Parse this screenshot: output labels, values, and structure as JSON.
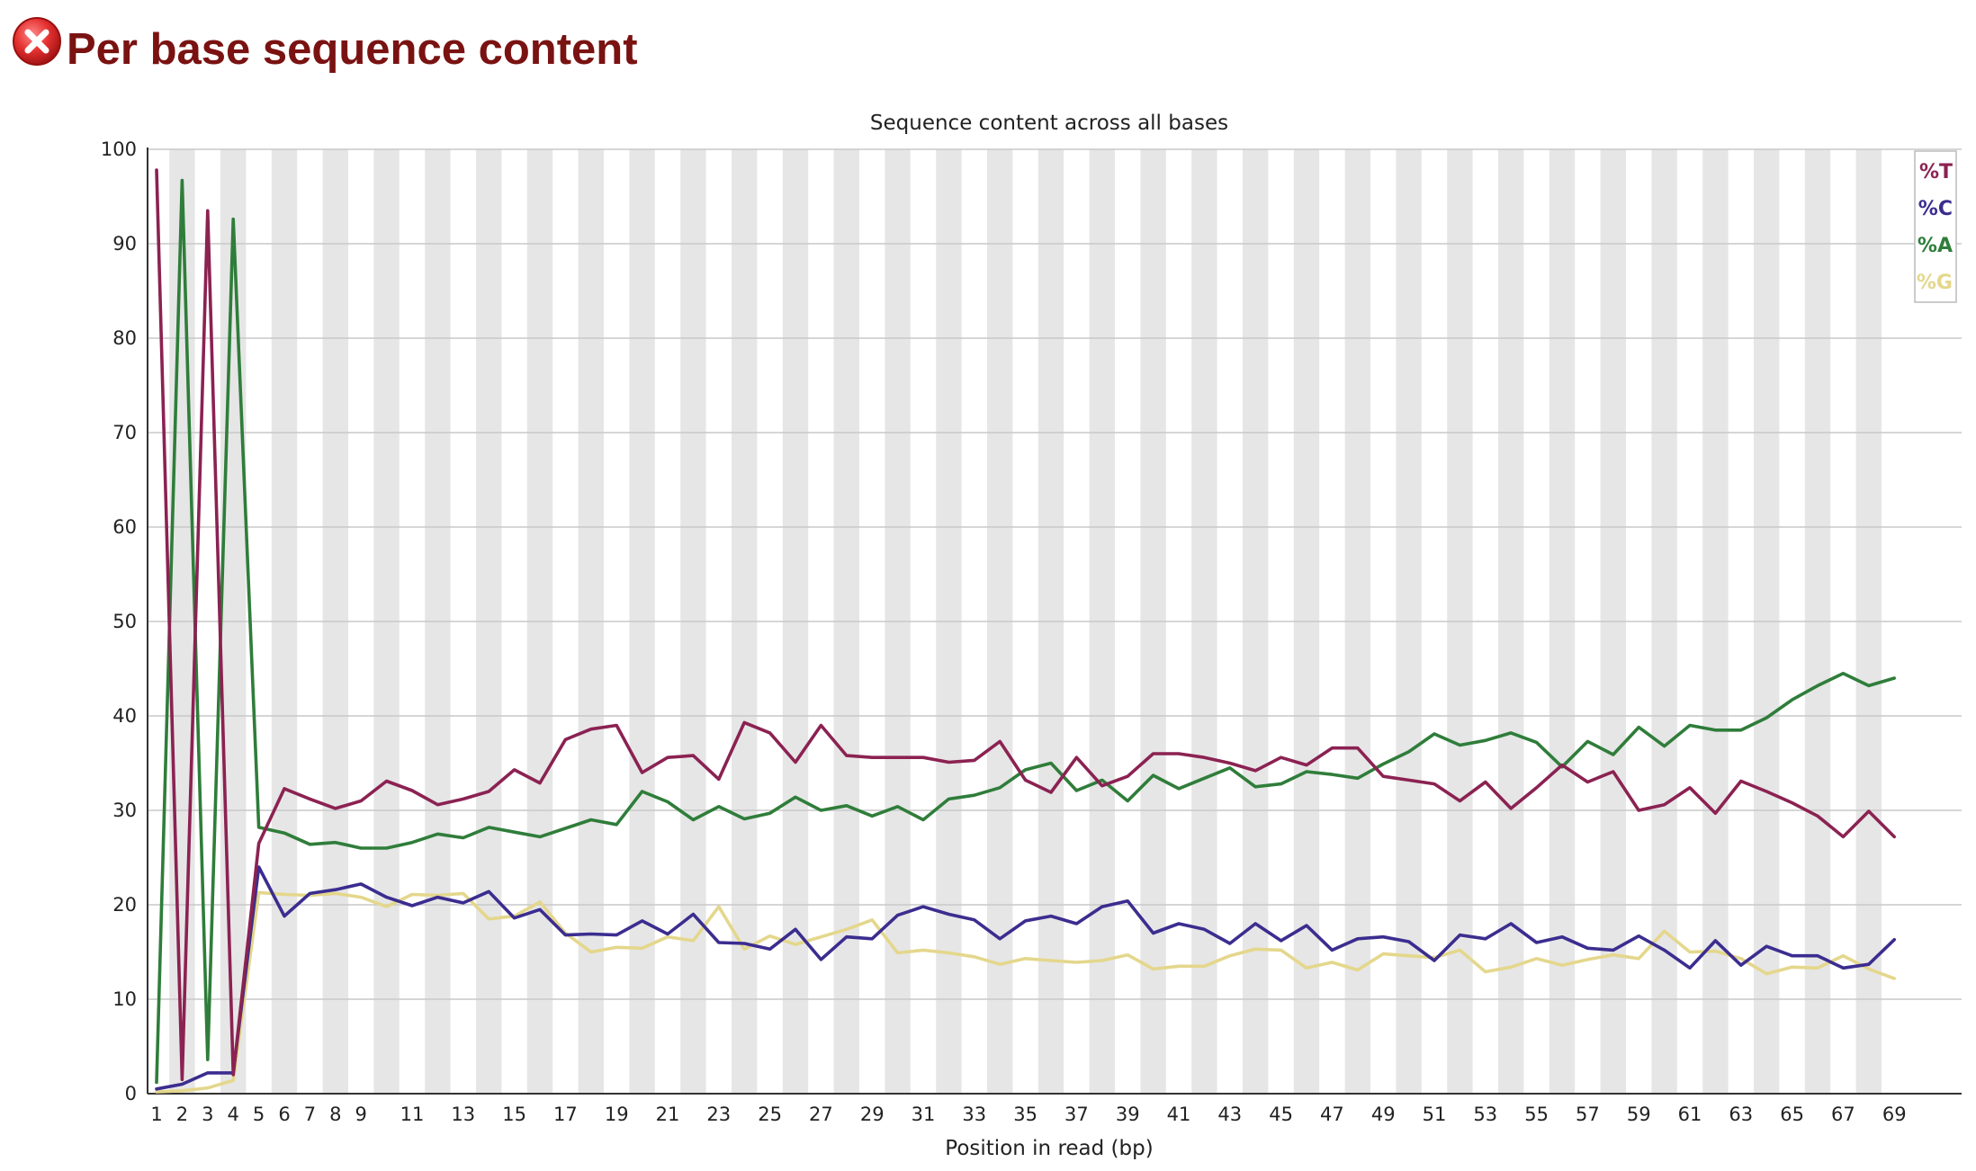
{
  "header": {
    "title": "Per base sequence content",
    "status_icon": "fail-x-icon",
    "status_color": "#d42a2a"
  },
  "chart_data": {
    "type": "line",
    "title": "Sequence content across all bases",
    "xlabel": "Position in read (bp)",
    "ylabel": "",
    "ylim": [
      0,
      100
    ],
    "yticks": [
      0,
      10,
      20,
      30,
      40,
      50,
      60,
      70,
      80,
      90,
      100
    ],
    "xtick_labels": [
      "1",
      "2",
      "3",
      "4",
      "5",
      "6",
      "7",
      "8",
      "9",
      "11",
      "13",
      "15",
      "17",
      "19",
      "21",
      "23",
      "25",
      "27",
      "29",
      "31",
      "33",
      "35",
      "37",
      "39",
      "41",
      "43",
      "45",
      "47",
      "49",
      "51",
      "53",
      "55",
      "57",
      "59",
      "61",
      "63",
      "65",
      "67",
      "69"
    ],
    "x": [
      1,
      2,
      3,
      4,
      5,
      6,
      7,
      8,
      9,
      10,
      11,
      12,
      13,
      14,
      15,
      16,
      17,
      18,
      19,
      20,
      21,
      22,
      23,
      24,
      25,
      26,
      27,
      28,
      29,
      30,
      31,
      32,
      33,
      34,
      35,
      36,
      37,
      38,
      39,
      40,
      41,
      42,
      43,
      44,
      45,
      46,
      47,
      48,
      49,
      50,
      51,
      52,
      53,
      54,
      55,
      56,
      57,
      58,
      59,
      60,
      61,
      62,
      63,
      64,
      65,
      66,
      67,
      68,
      69
    ],
    "grid": true,
    "legend_position": "top-right",
    "series": [
      {
        "name": "%T",
        "color": "#8b2252",
        "values": [
          97.8,
          1.5,
          93.5,
          2.0,
          26.5,
          32.3,
          31.2,
          30.2,
          31.0,
          33.1,
          32.1,
          30.6,
          31.2,
          32.0,
          34.3,
          32.9,
          37.5,
          38.6,
          39.0,
          34.0,
          35.6,
          35.8,
          33.3,
          39.3,
          38.2,
          35.1,
          39.0,
          35.8,
          35.6,
          35.6,
          35.6,
          35.1,
          35.3,
          37.3,
          33.2,
          31.9,
          35.6,
          32.6,
          33.6,
          36.0,
          36.0,
          35.6,
          35.0,
          34.2,
          35.6,
          34.8,
          36.6,
          36.6,
          33.6,
          33.2,
          32.8,
          31.0,
          33.0,
          30.2,
          32.4,
          34.8,
          33.0,
          34.1,
          30.0,
          30.6,
          32.4,
          29.7,
          33.1,
          32.0,
          30.8,
          29.4,
          27.2,
          29.9,
          27.2
        ]
      },
      {
        "name": "%C",
        "color": "#3b2d8f",
        "values": [
          0.5,
          1.0,
          2.2,
          2.2,
          24.0,
          18.8,
          21.2,
          21.6,
          22.2,
          20.8,
          19.9,
          20.8,
          20.2,
          21.4,
          18.6,
          19.5,
          16.8,
          16.9,
          16.8,
          18.3,
          16.9,
          19.0,
          16.0,
          15.9,
          15.3,
          17.4,
          14.2,
          16.6,
          16.4,
          18.9,
          19.8,
          19.0,
          18.4,
          16.4,
          18.3,
          18.8,
          18.0,
          19.8,
          20.4,
          17.0,
          18.0,
          17.4,
          15.9,
          18.0,
          16.2,
          17.8,
          15.2,
          16.4,
          16.6,
          16.1,
          14.1,
          16.8,
          16.4,
          18.0,
          16.0,
          16.6,
          15.4,
          15.2,
          16.7,
          15.2,
          13.3,
          16.2,
          13.6,
          15.6,
          14.6,
          14.6,
          13.3,
          13.7,
          16.3
        ]
      },
      {
        "name": "%A",
        "color": "#2f7d3a",
        "values": [
          1.2,
          96.7,
          3.6,
          92.6,
          28.2,
          27.6,
          26.4,
          26.6,
          26.0,
          26.0,
          26.6,
          27.5,
          27.1,
          28.2,
          27.7,
          27.2,
          28.1,
          29.0,
          28.5,
          32.0,
          30.9,
          29.0,
          30.4,
          29.1,
          29.7,
          31.4,
          30.0,
          30.5,
          29.4,
          30.4,
          29.0,
          31.2,
          31.6,
          32.4,
          34.3,
          35.0,
          32.1,
          33.2,
          31.0,
          33.7,
          32.3,
          33.4,
          34.5,
          32.5,
          32.8,
          34.1,
          33.8,
          33.4,
          34.9,
          36.2,
          38.1,
          36.9,
          37.4,
          38.2,
          37.2,
          34.6,
          37.3,
          35.9,
          38.8,
          36.8,
          39.0,
          38.5,
          38.5,
          39.8,
          41.7,
          43.2,
          44.5,
          43.2,
          44.0
        ]
      },
      {
        "name": "%G",
        "color": "#e4d78c",
        "values": [
          0.2,
          0.3,
          0.6,
          1.4,
          21.3,
          21.1,
          21.0,
          21.2,
          20.8,
          19.8,
          21.1,
          21.0,
          21.2,
          18.5,
          18.8,
          20.3,
          17.0,
          15.0,
          15.5,
          15.4,
          16.6,
          16.2,
          19.8,
          15.3,
          16.7,
          15.8,
          16.6,
          17.4,
          18.4,
          14.9,
          15.2,
          14.9,
          14.5,
          13.7,
          14.3,
          14.1,
          13.9,
          14.1,
          14.7,
          13.2,
          13.5,
          13.5,
          14.6,
          15.3,
          15.2,
          13.3,
          13.9,
          13.1,
          14.8,
          14.6,
          14.4,
          15.2,
          12.9,
          13.4,
          14.3,
          13.6,
          14.2,
          14.7,
          14.3,
          17.2,
          15.0,
          15.1,
          14.3,
          12.7,
          13.4,
          13.3,
          14.6,
          13.2,
          12.2
        ]
      }
    ]
  }
}
